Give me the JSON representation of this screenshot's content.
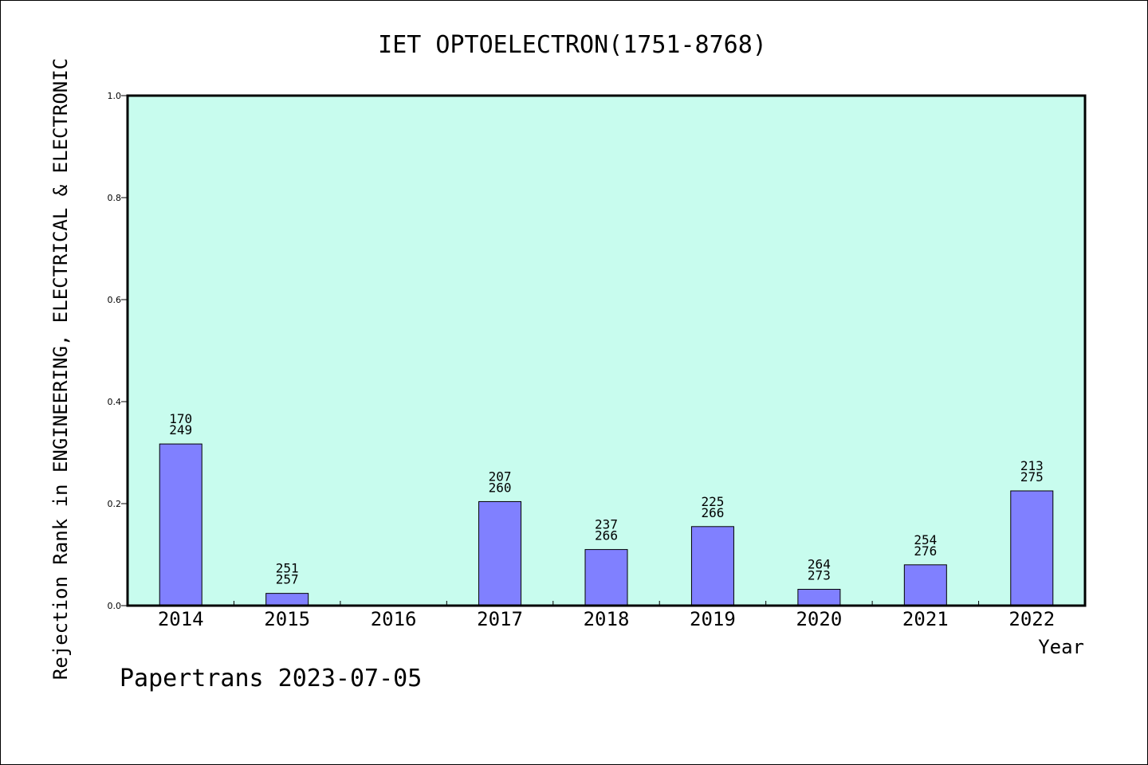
{
  "footer_note": "Papertrans 2023-07-05",
  "colors": {
    "plot_background": "#c8fcee",
    "bar_fill": "#8080ff",
    "bar_stroke": "#000000",
    "axis": "#000000"
  },
  "chart_data": {
    "type": "bar",
    "title": "IET OPTOELECTRON(1751-8768)",
    "xlabel": "Year",
    "ylabel": "Rejection Rank in ENGINEERING, ELECTRICAL & ELECTRONIC",
    "ylim": [
      0,
      1.0
    ],
    "yticks": [
      "0.0",
      "0.2",
      "0.4",
      "0.6",
      "0.8",
      "1.0"
    ],
    "grid": false,
    "categories": [
      "2014",
      "2015",
      "2016",
      "2017",
      "2018",
      "2019",
      "2020",
      "2021",
      "2022"
    ],
    "values": [
      0.317,
      0.024,
      0,
      0.204,
      0.11,
      0.155,
      0.032,
      0.08,
      0.225
    ],
    "bar_labels": [
      [
        "170",
        "249"
      ],
      [
        "251",
        "257"
      ],
      null,
      [
        "207",
        "260"
      ],
      [
        "237",
        "266"
      ],
      [
        "225",
        "266"
      ],
      [
        "264",
        "273"
      ],
      [
        "254",
        "276"
      ],
      [
        "213",
        "275"
      ]
    ]
  }
}
